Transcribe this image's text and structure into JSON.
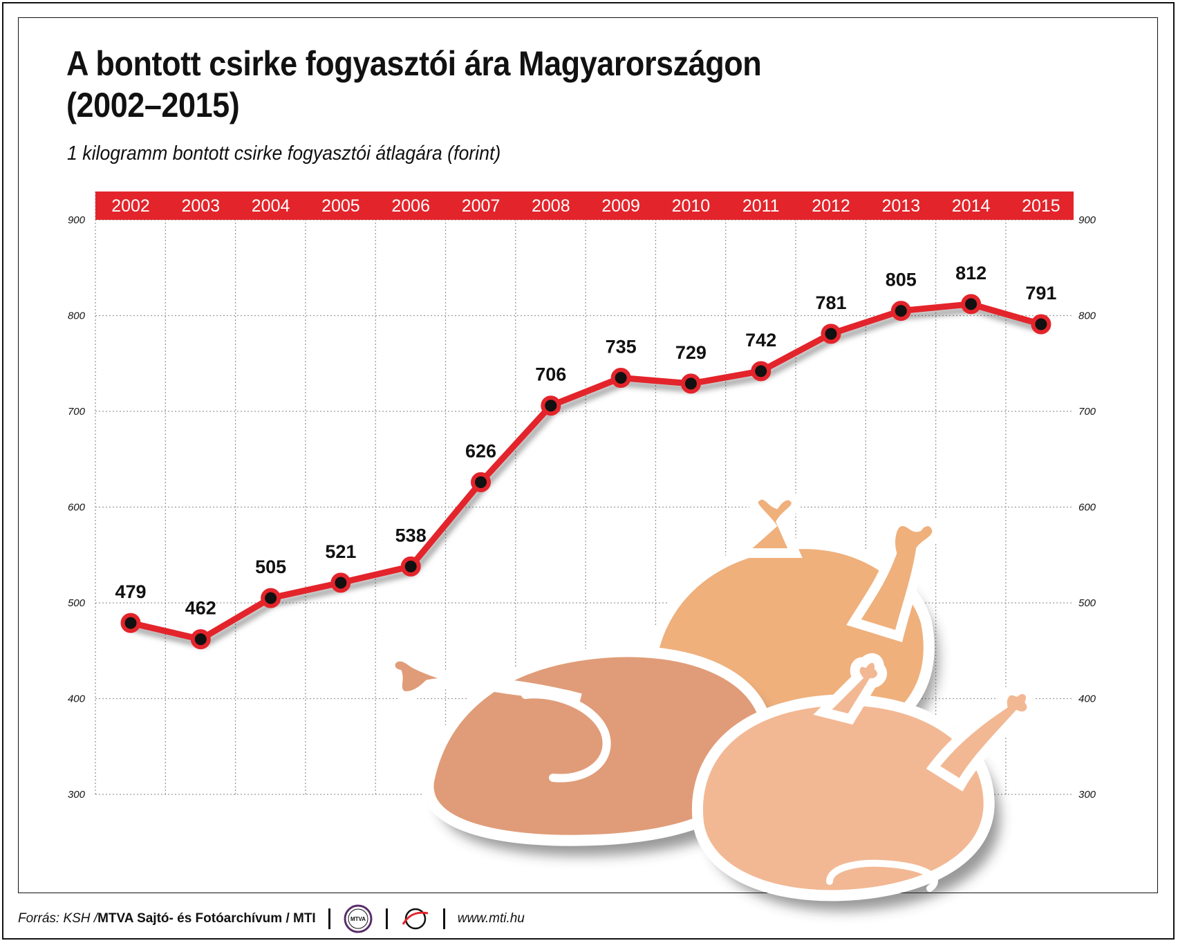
{
  "title_line1": "A bontott csirke fogyasztói ára Magyarországon",
  "title_line2": "(2002–2015)",
  "subtitle": "1 kilogramm bontott csirke fogyasztói átlagára (forint)",
  "colors": {
    "accent_red": "#e3242b",
    "point_black": "#111111",
    "grid": "#9a9a9a",
    "chicken_dark": "#e09c78",
    "chicken_mid": "#efb07c",
    "chicken_light": "#f2b894"
  },
  "footer": {
    "source_label": "Forrás: KSH / ",
    "source_org": "MTVA Sajtó- és Fotóarchívum / MTI",
    "logo1_text": "MTVA",
    "url": "www.mti.hu"
  },
  "chart_data": {
    "type": "line",
    "categories": [
      "2002",
      "2003",
      "2004",
      "2005",
      "2006",
      "2007",
      "2008",
      "2009",
      "2010",
      "2011",
      "2012",
      "2013",
      "2014",
      "2015"
    ],
    "values": [
      479,
      462,
      505,
      521,
      538,
      626,
      706,
      735,
      729,
      742,
      781,
      805,
      812,
      791
    ],
    "ylim": [
      300,
      900
    ],
    "yticks": [
      "900",
      "800",
      "700",
      "600",
      "500",
      "400",
      "300"
    ],
    "grid": true,
    "x_axis_position": "top"
  }
}
